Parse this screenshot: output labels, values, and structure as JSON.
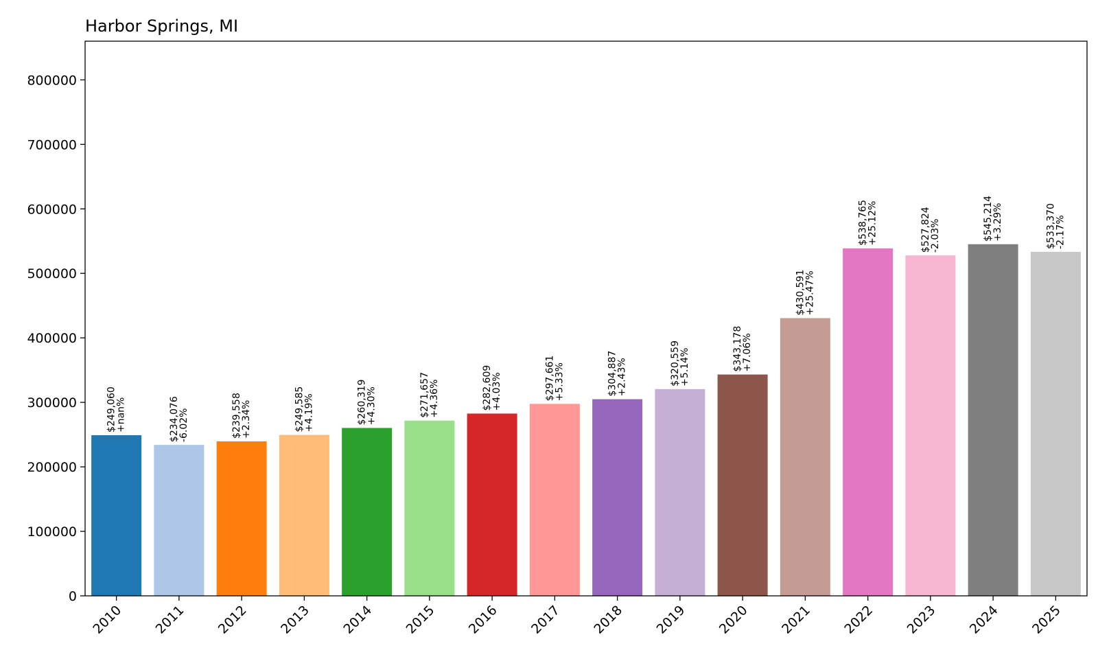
{
  "chart_data": {
    "type": "bar",
    "title": "Harbor Springs, MI",
    "xlabel": "",
    "ylabel": "",
    "ylim": [
      0,
      860000
    ],
    "yticks": [
      0,
      100000,
      200000,
      300000,
      400000,
      500000,
      600000,
      700000,
      800000
    ],
    "ytick_labels": [
      "0",
      "100000",
      "200000",
      "300000",
      "400000",
      "500000",
      "600000",
      "700000",
      "800000"
    ],
    "grid": false,
    "legend": "none",
    "categories": [
      "2010",
      "2011",
      "2012",
      "2013",
      "2014",
      "2015",
      "2016",
      "2017",
      "2018",
      "2019",
      "2020",
      "2021",
      "2022",
      "2023",
      "2024",
      "2025"
    ],
    "values": [
      249060,
      234076,
      239558,
      249585,
      260319,
      271657,
      282609,
      297661,
      304887,
      320559,
      343178,
      430591,
      538765,
      527824,
      545214,
      533370
    ],
    "value_labels": [
      "$249,060",
      "$234,076",
      "$239,558",
      "$249,585",
      "$260,319",
      "$271,657",
      "$282,609",
      "$297,661",
      "$304,887",
      "$320,559",
      "$343,178",
      "$430,591",
      "$538,765",
      "$527,824",
      "$545,214",
      "$533,370"
    ],
    "change_labels": [
      "+nan%",
      "-6.02%",
      "+2.34%",
      "+4.19%",
      "+4.30%",
      "+4.36%",
      "+4.03%",
      "+5.33%",
      "+2.43%",
      "+5.14%",
      "+7.06%",
      "+25.47%",
      "+25.12%",
      "-2.03%",
      "+3.29%",
      "-2.17%"
    ],
    "colors": [
      "#1f77b4",
      "#aec7e8",
      "#ff7f0e",
      "#ffbb78",
      "#2ca02c",
      "#98df8a",
      "#d62728",
      "#ff9896",
      "#9467bd",
      "#c5b0d5",
      "#8c564b",
      "#c49c94",
      "#e377c2",
      "#f7b6d2",
      "#7f7f7f",
      "#c7c7c7"
    ]
  }
}
